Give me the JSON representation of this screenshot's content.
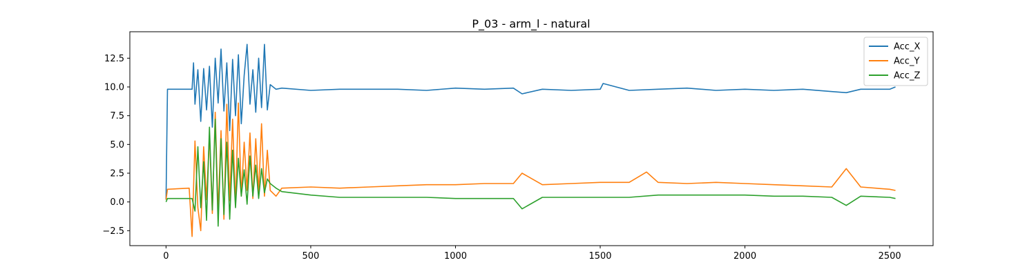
{
  "chart_data": {
    "type": "line",
    "title": "P_03 - arm_l - natural",
    "xlabel": "",
    "ylabel": "",
    "xlim": [
      -125,
      2650
    ],
    "ylim": [
      -3.8,
      14.8
    ],
    "xticks": [
      0,
      500,
      1000,
      1500,
      2000,
      2500
    ],
    "xtick_labels": [
      "0",
      "500",
      "1000",
      "1500",
      "2000",
      "2500"
    ],
    "yticks": [
      -2.5,
      0.0,
      2.5,
      5.0,
      7.5,
      10.0,
      12.5
    ],
    "ytick_labels": [
      "−2.5",
      "0.0",
      "2.5",
      "5.0",
      "7.5",
      "10.0",
      "12.5"
    ],
    "grid": false,
    "legend_position": "upper right",
    "series": [
      {
        "name": "Acc_X",
        "color": "#1f77b4",
        "x": [
          0,
          5,
          90,
          95,
          100,
          110,
          120,
          130,
          140,
          150,
          160,
          170,
          180,
          190,
          200,
          210,
          220,
          230,
          240,
          250,
          260,
          270,
          280,
          290,
          300,
          310,
          320,
          330,
          340,
          350,
          360,
          380,
          400,
          500,
          600,
          700,
          800,
          900,
          1000,
          1100,
          1200,
          1230,
          1300,
          1400,
          1500,
          1510,
          1600,
          1700,
          1800,
          1900,
          2000,
          2100,
          2200,
          2300,
          2350,
          2400,
          2500,
          2520
        ],
        "y": [
          0.2,
          9.8,
          9.8,
          12.1,
          8.5,
          11.5,
          7.0,
          11.6,
          8.0,
          11.8,
          6.5,
          12.5,
          8.6,
          13.3,
          7.9,
          12.1,
          6.2,
          12.4,
          7.5,
          12.8,
          6.8,
          11.0,
          13.7,
          8.5,
          11.5,
          7.8,
          12.5,
          8.2,
          13.7,
          8.0,
          10.2,
          9.8,
          9.9,
          9.7,
          9.8,
          9.8,
          9.8,
          9.7,
          9.9,
          9.8,
          9.9,
          9.4,
          9.8,
          9.7,
          9.8,
          10.3,
          9.7,
          9.8,
          9.9,
          9.7,
          9.8,
          9.7,
          9.8,
          9.6,
          9.5,
          9.8,
          9.8,
          10.0
        ]
      },
      {
        "name": "Acc_Y",
        "color": "#ff7f0e",
        "x": [
          0,
          5,
          80,
          90,
          100,
          110,
          120,
          130,
          140,
          150,
          160,
          170,
          180,
          190,
          200,
          210,
          220,
          230,
          240,
          250,
          260,
          270,
          280,
          290,
          300,
          310,
          320,
          330,
          340,
          350,
          360,
          380,
          400,
          500,
          600,
          700,
          800,
          900,
          1000,
          1100,
          1200,
          1230,
          1300,
          1400,
          1500,
          1600,
          1660,
          1700,
          1800,
          1900,
          2000,
          2100,
          2200,
          2300,
          2350,
          2400,
          2500,
          2520
        ],
        "y": [
          0.2,
          1.1,
          1.2,
          -3.0,
          5.3,
          -0.5,
          -2.5,
          4.8,
          0.2,
          5.8,
          -1.0,
          7.8,
          -0.8,
          6.2,
          -1.5,
          8.5,
          0.1,
          7.2,
          -0.3,
          8.6,
          0.5,
          5.2,
          1.0,
          6.0,
          0.3,
          5.5,
          0.8,
          6.8,
          0.5,
          4.5,
          1.0,
          0.5,
          1.2,
          1.3,
          1.2,
          1.3,
          1.4,
          1.5,
          1.5,
          1.6,
          1.6,
          2.5,
          1.5,
          1.6,
          1.7,
          1.7,
          2.6,
          1.7,
          1.6,
          1.7,
          1.6,
          1.5,
          1.4,
          1.3,
          2.9,
          1.3,
          1.1,
          1.0
        ]
      },
      {
        "name": "Acc_Z",
        "color": "#2ca02c",
        "x": [
          0,
          5,
          90,
          100,
          110,
          120,
          130,
          140,
          150,
          160,
          170,
          180,
          190,
          200,
          210,
          220,
          230,
          240,
          250,
          260,
          270,
          280,
          290,
          300,
          310,
          320,
          330,
          340,
          350,
          360,
          380,
          400,
          500,
          600,
          700,
          800,
          900,
          1000,
          1100,
          1200,
          1230,
          1300,
          1400,
          1500,
          1600,
          1700,
          1800,
          1900,
          2000,
          2100,
          2200,
          2300,
          2350,
          2400,
          2500,
          2520
        ],
        "y": [
          0.0,
          0.3,
          0.3,
          -0.8,
          4.8,
          -0.5,
          3.5,
          -1.6,
          6.5,
          -0.7,
          7.2,
          -2.1,
          5.5,
          -1.1,
          5.2,
          -1.5,
          4.5,
          -0.5,
          3.8,
          0.5,
          2.8,
          -0.2,
          4.0,
          0.5,
          3.2,
          0.3,
          2.9,
          0.8,
          2.0,
          1.6,
          1.2,
          0.9,
          0.6,
          0.4,
          0.4,
          0.4,
          0.4,
          0.3,
          0.3,
          0.3,
          -0.6,
          0.4,
          0.4,
          0.4,
          0.4,
          0.6,
          0.6,
          0.6,
          0.6,
          0.5,
          0.5,
          0.4,
          -0.3,
          0.5,
          0.4,
          0.3
        ]
      }
    ]
  }
}
